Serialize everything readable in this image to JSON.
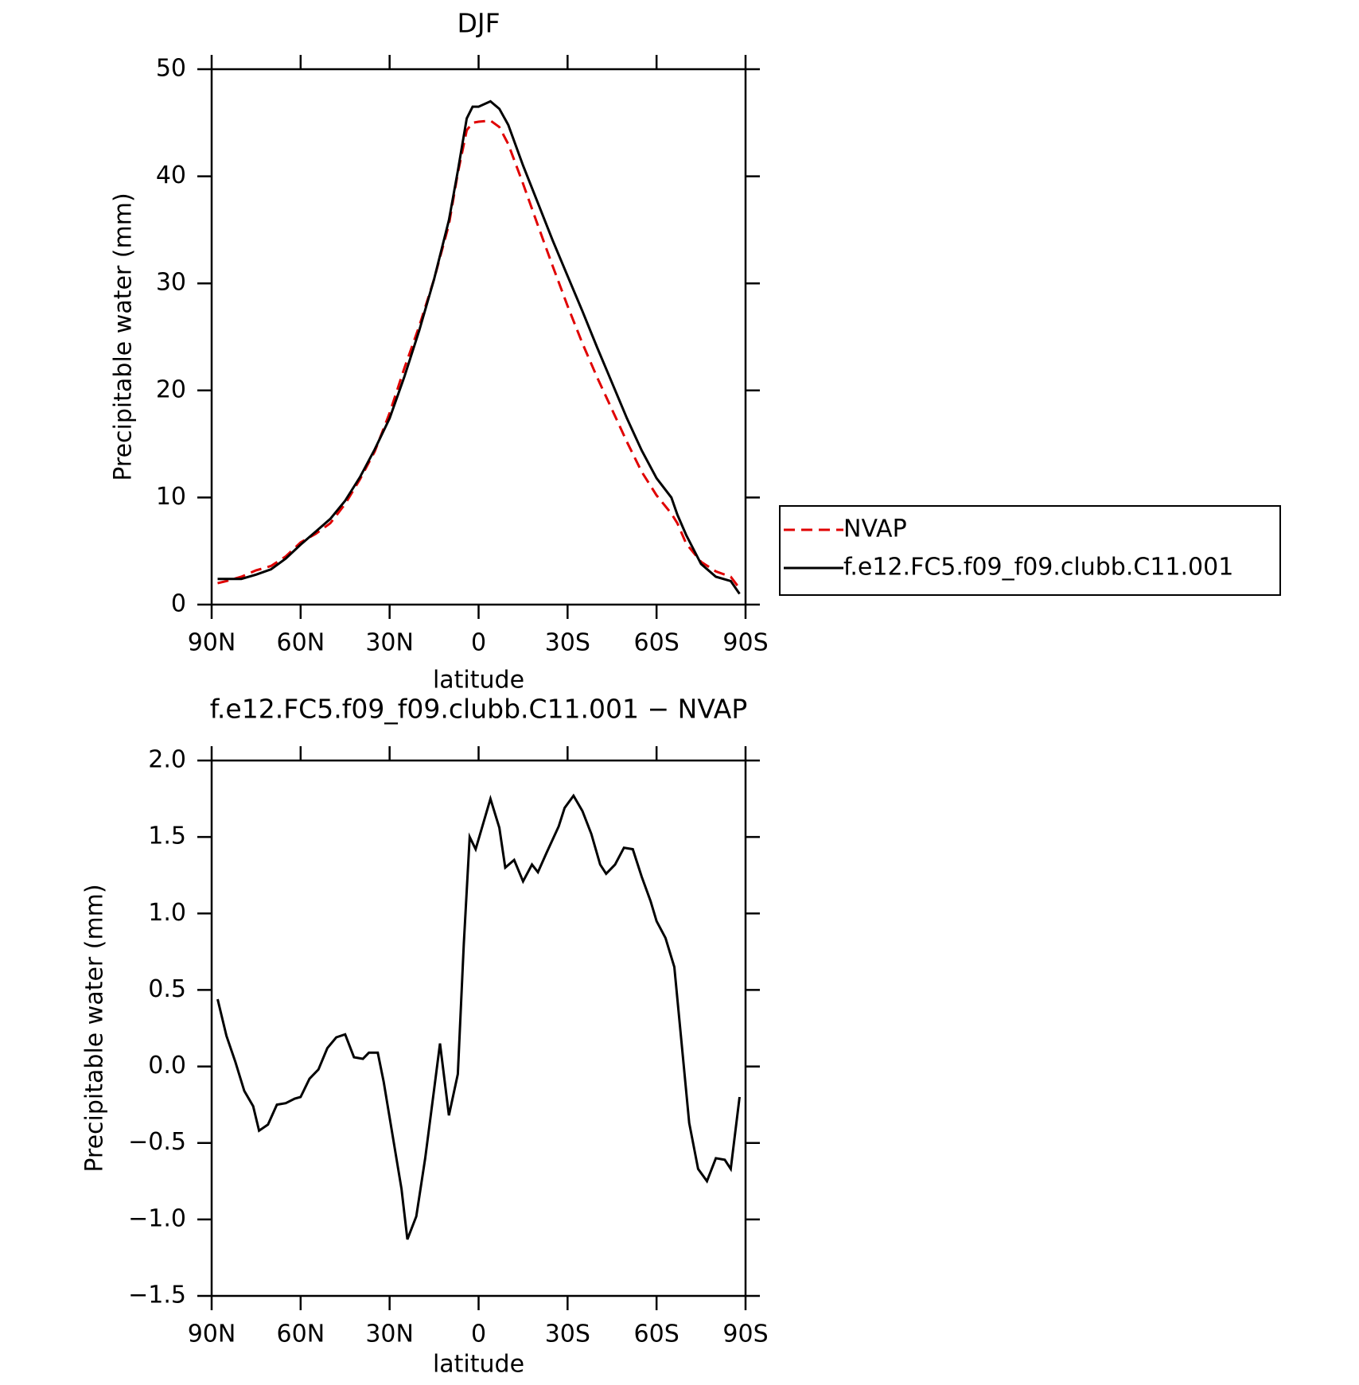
{
  "chart_data": [
    {
      "type": "line",
      "title": "DJF",
      "xlabel": "latitude",
      "ylabel": "Precipitable water (mm)",
      "x": [
        88,
        85,
        80,
        75,
        70,
        65,
        60,
        55,
        50,
        45,
        40,
        35,
        30,
        25,
        20,
        15,
        10,
        7,
        4,
        2,
        0,
        -4,
        -7,
        -10,
        -15,
        -20,
        -25,
        -30,
        -35,
        -40,
        -45,
        -50,
        -55,
        -60,
        -65,
        -67,
        -70,
        -75,
        -80,
        -85,
        -88
      ],
      "series": [
        {
          "name": "NVAP",
          "color": "#e00000",
          "dash": true,
          "values": [
            2.0,
            2.2,
            2.6,
            3.2,
            3.6,
            4.5,
            5.8,
            6.6,
            7.6,
            9.4,
            11.7,
            14.3,
            17.9,
            22.1,
            26.0,
            30.4,
            35.5,
            40.3,
            44.3,
            45.0,
            45.1,
            45.2,
            44.6,
            43.0,
            39.3,
            35.4,
            31.6,
            27.9,
            24.4,
            21.2,
            18.2,
            15.2,
            12.4,
            10.2,
            8.5,
            7.6,
            5.7,
            4.0,
            3.1,
            2.6,
            1.5
          ]
        },
        {
          "name": "f.e12.FC5.f09_f09.clubb.C11.001",
          "color": "#000000",
          "dash": false,
          "values": [
            2.4,
            2.4,
            2.4,
            2.8,
            3.3,
            4.3,
            5.6,
            6.8,
            8.0,
            9.7,
            11.9,
            14.5,
            17.4,
            21.3,
            25.6,
            30.4,
            35.9,
            40.5,
            45.4,
            46.5,
            46.5,
            47.0,
            46.3,
            44.8,
            41.0,
            37.5,
            34.0,
            30.7,
            27.4,
            24.0,
            20.7,
            17.4,
            14.4,
            11.8,
            10.0,
            8.4,
            6.5,
            3.8,
            2.6,
            2.2,
            1.0
          ]
        }
      ],
      "xlim": [
        90,
        -90
      ],
      "xticks": [
        {
          "value": 90,
          "label": "90N"
        },
        {
          "value": 60,
          "label": "60N"
        },
        {
          "value": 30,
          "label": "30N"
        },
        0,
        {
          "value": -30,
          "label": "30S"
        },
        {
          "value": -60,
          "label": "60S"
        },
        {
          "value": -90,
          "label": "90S"
        }
      ],
      "ylim": [
        0,
        50
      ],
      "yticks": [
        0,
        10,
        20,
        30,
        40,
        50
      ],
      "legend": "right"
    },
    {
      "type": "line",
      "title": "f.e12.FC5.f09_f09.clubb.C11.001 − NVAP",
      "xlabel": "latitude",
      "ylabel": "Precipitable water (mm)",
      "x": [
        88,
        85,
        82,
        79,
        76,
        74,
        71,
        68,
        65,
        62,
        60,
        57,
        54,
        51,
        48,
        45,
        42,
        39,
        37,
        34,
        32,
        29,
        26,
        24,
        21,
        18,
        15,
        13,
        10,
        7,
        5,
        3,
        1,
        -4,
        -7,
        -9,
        -12,
        -15,
        -18,
        -20,
        -23,
        -27,
        -29,
        -32,
        -35,
        -38,
        -41,
        -43,
        -46,
        -49,
        -52,
        -55,
        -58,
        -60,
        -63,
        -66,
        -69,
        -71,
        -74,
        -77,
        -80,
        -83,
        -85,
        -88
      ],
      "values": [
        0.44,
        0.2,
        0.03,
        -0.16,
        -0.26,
        -0.42,
        -0.38,
        -0.25,
        -0.24,
        -0.21,
        -0.2,
        -0.08,
        -0.02,
        0.12,
        0.19,
        0.21,
        0.06,
        0.05,
        0.09,
        0.09,
        -0.1,
        -0.45,
        -0.8,
        -1.13,
        -0.98,
        -0.6,
        -0.15,
        0.15,
        -0.32,
        -0.05,
        0.8,
        1.5,
        1.42,
        1.75,
        1.56,
        1.3,
        1.35,
        1.21,
        1.32,
        1.27,
        1.4,
        1.57,
        1.69,
        1.77,
        1.67,
        1.52,
        1.32,
        1.26,
        1.32,
        1.43,
        1.42,
        1.24,
        1.08,
        0.95,
        0.84,
        0.65,
        0.04,
        -0.37,
        -0.67,
        -0.75,
        -0.6,
        -0.61,
        -0.67,
        -0.2
      ],
      "color": "#000000",
      "xlim": [
        90,
        -90
      ],
      "xticks": [
        {
          "value": 90,
          "label": "90N"
        },
        {
          "value": 60,
          "label": "60N"
        },
        {
          "value": 30,
          "label": "30N"
        },
        0,
        {
          "value": -30,
          "label": "30S"
        },
        {
          "value": -60,
          "label": "60S"
        },
        {
          "value": -90,
          "label": "90S"
        }
      ],
      "ylim": [
        -1.5,
        2.0
      ],
      "yticks": [
        {
          "value": -1.5,
          "label": "−1.5"
        },
        {
          "value": -1.0,
          "label": "−1.0"
        },
        {
          "value": -0.5,
          "label": "−0.5"
        },
        {
          "value": 0,
          "label": "0.0"
        },
        {
          "value": 0.5,
          "label": "0.5"
        },
        {
          "value": 1.0,
          "label": "1.0"
        },
        {
          "value": 1.5,
          "label": "1.5"
        },
        {
          "value": 2.0,
          "label": "2.0"
        }
      ]
    }
  ]
}
